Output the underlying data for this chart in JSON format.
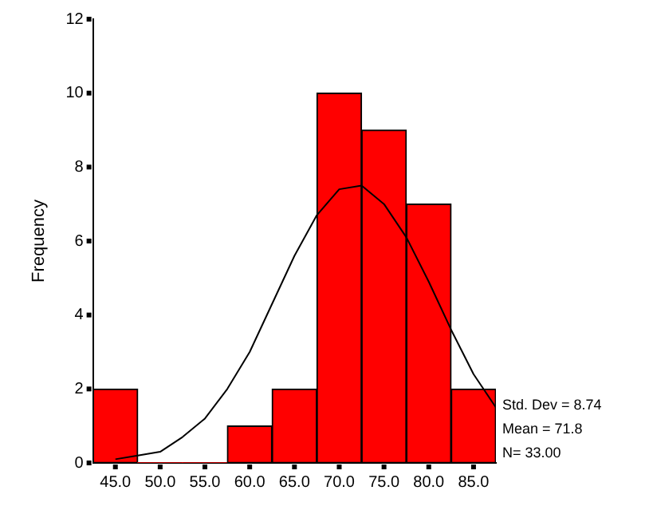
{
  "chart_data": {
    "type": "histogram",
    "ylabel": "Frequency",
    "bins": [
      42.5,
      47.5,
      52.5,
      57.5,
      62.5,
      67.5,
      72.5,
      77.5,
      82.5,
      87.5
    ],
    "values": [
      2,
      0,
      0,
      1,
      2,
      10,
      9,
      7,
      2
    ],
    "color": "#ff0000",
    "xlim": [
      42.5,
      87.5
    ],
    "xticks": [
      {
        "value": 45,
        "label": "45.0"
      },
      {
        "value": 50,
        "label": "50.0"
      },
      {
        "value": 55,
        "label": "55.0"
      },
      {
        "value": 60,
        "label": "60.0"
      },
      {
        "value": 65,
        "label": "65.0"
      },
      {
        "value": 70,
        "label": "70.0"
      },
      {
        "value": 75,
        "label": "75.0"
      },
      {
        "value": 80,
        "label": "80.0"
      },
      {
        "value": 85,
        "label": "85.0"
      }
    ],
    "ylim": [
      0,
      12
    ],
    "yticks": [
      0,
      2,
      4,
      6,
      8,
      10,
      12
    ],
    "series": [
      {
        "type": "line",
        "color": "#000000",
        "x": [
          45,
          47.5,
          50,
          52.5,
          55,
          57.5,
          60,
          62.5,
          65,
          67.5,
          70,
          72.5,
          75,
          77.5,
          80,
          82.5,
          85,
          87.5
        ],
        "values": [
          0.1,
          0.2,
          0.3,
          0.7,
          1.2,
          2.0,
          3.0,
          4.3,
          5.6,
          6.7,
          7.4,
          7.5,
          7.0,
          6.1,
          4.9,
          3.6,
          2.4,
          1.5
        ]
      }
    ],
    "annotations": [
      "Std. Dev = 8.74",
      "Mean = 71.8",
      "N= 33.00"
    ]
  }
}
